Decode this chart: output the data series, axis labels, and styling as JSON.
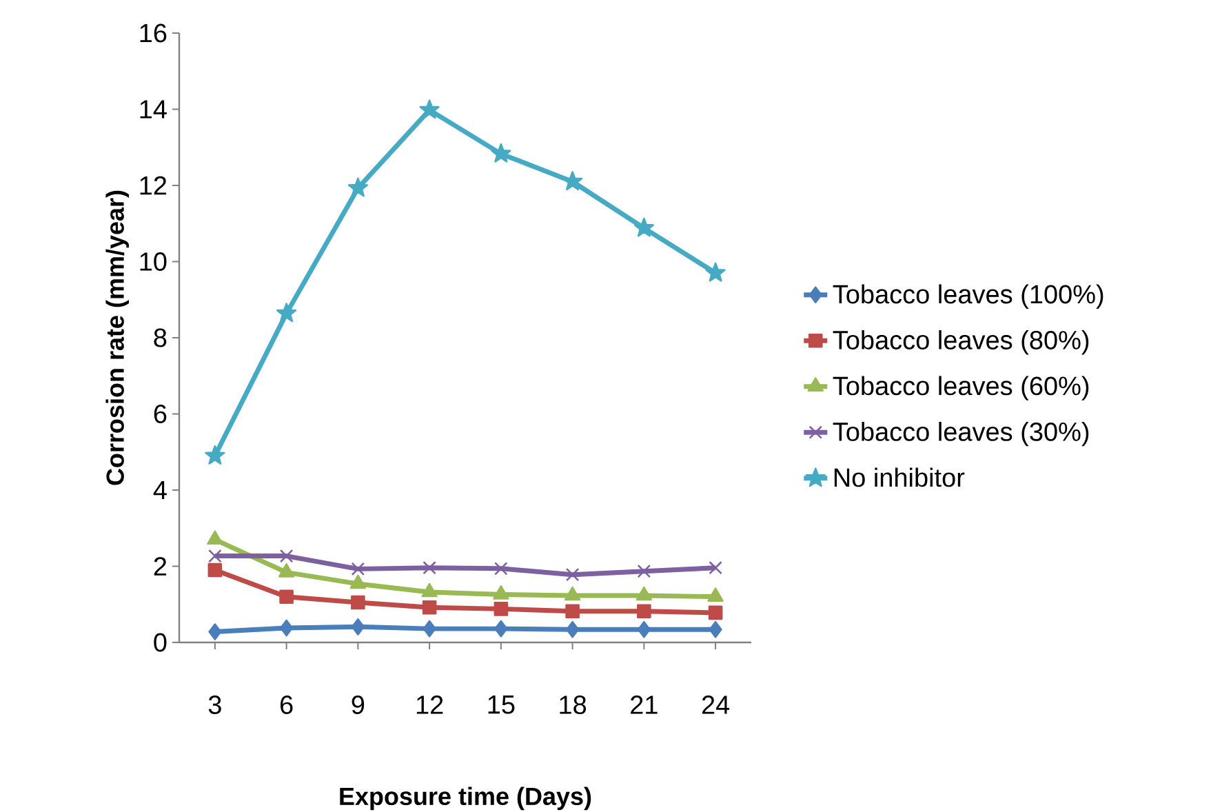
{
  "chart_data": {
    "type": "line",
    "xlabel": "Exposure time (Days)",
    "ylabel": "Corrosion rate (mm/year)",
    "categories": [
      "3",
      "6",
      "9",
      "12",
      "15",
      "18",
      "21",
      "24"
    ],
    "ylim": [
      0,
      16
    ],
    "yticks": [
      0,
      2,
      4,
      6,
      8,
      10,
      12,
      14,
      16
    ],
    "legend": "right",
    "series": [
      {
        "name": "Tobacco leaves (100%)",
        "color": "#4a7ebb",
        "marker": "diamond",
        "values": [
          0.28,
          0.38,
          0.41,
          0.36,
          0.36,
          0.34,
          0.34,
          0.34
        ]
      },
      {
        "name": "Tobacco leaves (80%)",
        "color": "#be4b48",
        "marker": "square",
        "values": [
          1.9,
          1.2,
          1.05,
          0.92,
          0.88,
          0.82,
          0.82,
          0.78
        ]
      },
      {
        "name": "Tobacco leaves (60%)",
        "color": "#98b954",
        "marker": "triangle",
        "values": [
          2.7,
          1.84,
          1.54,
          1.32,
          1.26,
          1.23,
          1.23,
          1.2
        ]
      },
      {
        "name": "Tobacco leaves (30%)",
        "color": "#7d60a0",
        "marker": "cross",
        "values": [
          2.27,
          2.27,
          1.93,
          1.96,
          1.94,
          1.78,
          1.87,
          1.96
        ]
      },
      {
        "name": "No inhibitor",
        "color": "#46aac5",
        "marker": "star",
        "values": [
          4.9,
          8.64,
          11.93,
          13.98,
          12.83,
          12.1,
          10.88,
          9.7
        ]
      }
    ]
  }
}
